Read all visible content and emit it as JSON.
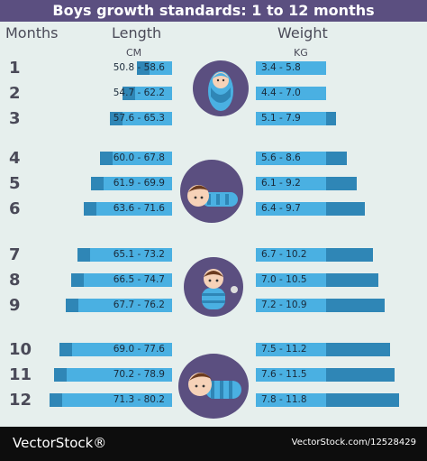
{
  "chart_data": {
    "type": "table",
    "title": "Boys growth standards: 1 to 12 months",
    "columns": {
      "months": "Months",
      "length": "Length",
      "weight": "Weight"
    },
    "units": {
      "length": "CM",
      "weight": "KG"
    },
    "rows": [
      {
        "month": "1",
        "length": "50.8 - 58.6",
        "weight": "3.4 - 5.8",
        "length_range": [
          50.8,
          58.6
        ],
        "weight_range": [
          3.4,
          5.8
        ]
      },
      {
        "month": "2",
        "length": "54.7 - 62.2",
        "weight": "4.4 - 7.0",
        "length_range": [
          54.7,
          62.2
        ],
        "weight_range": [
          4.4,
          7.0
        ]
      },
      {
        "month": "3",
        "length": "57.6 - 65.3",
        "weight": "5.1 - 7.9",
        "length_range": [
          57.6,
          65.3
        ],
        "weight_range": [
          5.1,
          7.9
        ]
      },
      {
        "month": "4",
        "length": "60.0 - 67.8",
        "weight": "5.6 - 8.6",
        "length_range": [
          60.0,
          67.8
        ],
        "weight_range": [
          5.6,
          8.6
        ]
      },
      {
        "month": "5",
        "length": "61.9 - 69.9",
        "weight": "6.1 - 9.2",
        "length_range": [
          61.9,
          69.9
        ],
        "weight_range": [
          6.1,
          9.2
        ]
      },
      {
        "month": "6",
        "length": "63.6 - 71.6",
        "weight": "6.4 - 9.7",
        "length_range": [
          63.6,
          71.6
        ],
        "weight_range": [
          6.4,
          9.7
        ]
      },
      {
        "month": "7",
        "length": "65.1 - 73.2",
        "weight": "6.7 - 10.2",
        "length_range": [
          65.1,
          73.2
        ],
        "weight_range": [
          6.7,
          10.2
        ]
      },
      {
        "month": "8",
        "length": "66.5 - 74.7",
        "weight": "7.0 - 10.5",
        "length_range": [
          66.5,
          74.7
        ],
        "weight_range": [
          7.0,
          10.5
        ]
      },
      {
        "month": "9",
        "length": "67.7 - 76.2",
        "weight": "7.2 - 10.9",
        "length_range": [
          67.7,
          76.2
        ],
        "weight_range": [
          7.2,
          10.9
        ]
      },
      {
        "month": "10",
        "length": "69.0 - 77.6",
        "weight": "7.5 - 11.2",
        "length_range": [
          69.0,
          77.6
        ],
        "weight_range": [
          7.5,
          11.2
        ]
      },
      {
        "month": "11",
        "length": "70.2 - 78.9",
        "weight": "7.6 - 11.5",
        "length_range": [
          70.2,
          78.9
        ],
        "weight_range": [
          7.6,
          11.5
        ]
      },
      {
        "month": "12",
        "length": "71.3 - 80.2",
        "weight": "7.8 - 11.8",
        "length_range": [
          71.3,
          80.2
        ],
        "weight_range": [
          7.8,
          11.8
        ]
      }
    ]
  },
  "footer": {
    "brand": "VectorStock®",
    "credit": "VectorStock.com/12528429"
  },
  "colors": {
    "background": "#e6efed",
    "title_bar": "#5b4f80",
    "bar_dark": "#2f86b6",
    "bar_light": "#4ab0e2",
    "circle": "#5b4f80",
    "footer": "#0d0d0d"
  },
  "illustrations": [
    "swaddled-baby-icon",
    "lying-baby-icon",
    "sitting-baby-icon",
    "crawling-baby-icon"
  ]
}
